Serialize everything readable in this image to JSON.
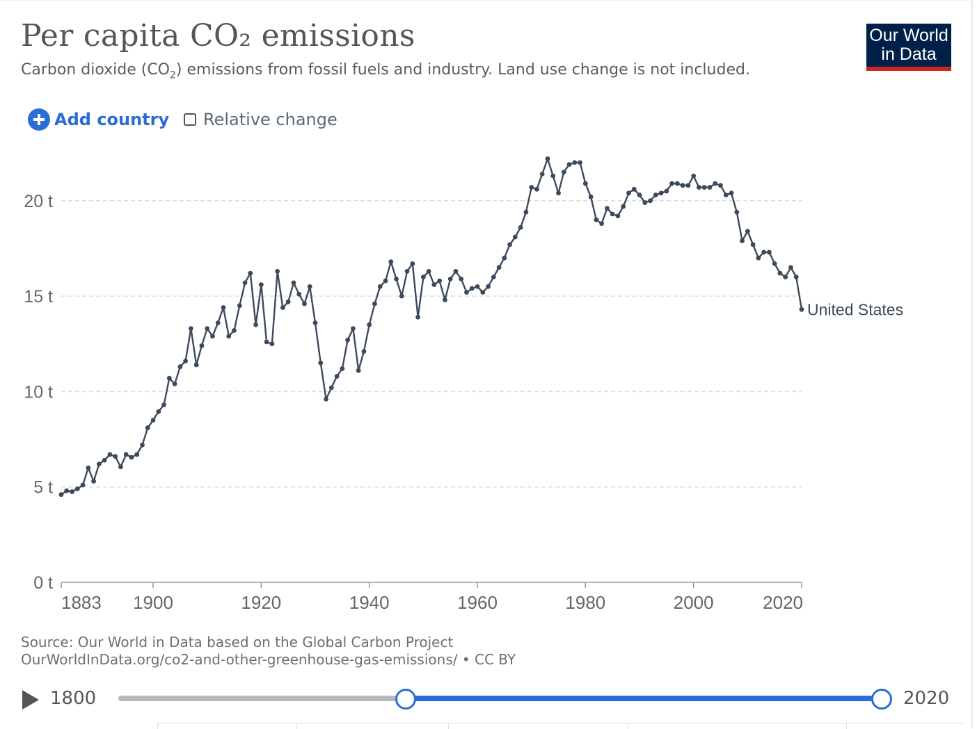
{
  "header": {
    "title": "Per capita CO₂ emissions",
    "subtitle_pre": "Carbon dioxide (CO",
    "subtitle_sub": "2",
    "subtitle_post": ") emissions from fossil fuels and industry. Land use change is not included.",
    "logo_line1": "Our World",
    "logo_line2": "in Data"
  },
  "controls": {
    "add_country": "Add country",
    "relative_change": "Relative change",
    "relative_checked": false
  },
  "footer": {
    "source": "Source: Our World in Data based on the Global Carbon Project",
    "url": "OurWorldInData.org/co2-and-other-greenhouse-gas-emissions/ • CC BY"
  },
  "timeline": {
    "start_label": "1800",
    "end_label": "2020",
    "range_min": 1800,
    "range_max": 2020,
    "selected_start": 1883,
    "selected_end": 2020
  },
  "colors": {
    "line": "#3c4a5c",
    "accent": "#2c6cd6",
    "logo_bg": "#002147",
    "logo_bar": "#ce261e"
  },
  "chart_data": {
    "type": "line",
    "title": "Per capita CO₂ emissions",
    "xlabel": "",
    "ylabel": "",
    "xlim": [
      1883,
      2020
    ],
    "ylim": [
      0,
      22
    ],
    "y_ticks": [
      0,
      5,
      10,
      15,
      20
    ],
    "y_tick_labels": [
      "0 t",
      "5 t",
      "10 t",
      "15 t",
      "20 t"
    ],
    "x_ticks": [
      1883,
      1900,
      1920,
      1940,
      1960,
      1980,
      2000,
      2020
    ],
    "x_tick_labels": [
      "1883",
      "1900",
      "1920",
      "1940",
      "1960",
      "1980",
      "2000",
      "2020"
    ],
    "grid": "horizontal dashed",
    "series": [
      {
        "name": "United States",
        "x": [
          1883,
          1884,
          1885,
          1886,
          1887,
          1888,
          1889,
          1890,
          1891,
          1892,
          1893,
          1894,
          1895,
          1896,
          1897,
          1898,
          1899,
          1900,
          1901,
          1902,
          1903,
          1904,
          1905,
          1906,
          1907,
          1908,
          1909,
          1910,
          1911,
          1912,
          1913,
          1914,
          1915,
          1916,
          1917,
          1918,
          1919,
          1920,
          1921,
          1922,
          1923,
          1924,
          1925,
          1926,
          1927,
          1928,
          1929,
          1930,
          1931,
          1932,
          1933,
          1934,
          1935,
          1936,
          1937,
          1938,
          1939,
          1940,
          1941,
          1942,
          1943,
          1944,
          1945,
          1946,
          1947,
          1948,
          1949,
          1950,
          1951,
          1952,
          1953,
          1954,
          1955,
          1956,
          1957,
          1958,
          1959,
          1960,
          1961,
          1962,
          1963,
          1964,
          1965,
          1966,
          1967,
          1968,
          1969,
          1970,
          1971,
          1972,
          1973,
          1974,
          1975,
          1976,
          1977,
          1978,
          1979,
          1980,
          1981,
          1982,
          1983,
          1984,
          1985,
          1986,
          1987,
          1988,
          1989,
          1990,
          1991,
          1992,
          1993,
          1994,
          1995,
          1996,
          1997,
          1998,
          1999,
          2000,
          2001,
          2002,
          2003,
          2004,
          2005,
          2006,
          2007,
          2008,
          2009,
          2010,
          2011,
          2012,
          2013,
          2014,
          2015,
          2016,
          2017,
          2018,
          2019,
          2020
        ],
        "values": [
          4.6,
          4.8,
          4.75,
          4.9,
          5.1,
          6.0,
          5.3,
          6.2,
          6.4,
          6.7,
          6.6,
          6.05,
          6.7,
          6.55,
          6.7,
          7.2,
          8.1,
          8.5,
          8.95,
          9.3,
          10.7,
          10.4,
          11.3,
          11.6,
          13.3,
          11.4,
          12.4,
          13.3,
          12.9,
          13.6,
          14.4,
          12.9,
          13.2,
          14.5,
          15.7,
          16.2,
          13.5,
          15.6,
          12.6,
          12.5,
          16.3,
          14.4,
          14.7,
          15.7,
          15.1,
          14.6,
          15.5,
          13.6,
          11.5,
          9.6,
          10.2,
          10.8,
          11.2,
          12.7,
          13.3,
          11.1,
          12.1,
          13.5,
          14.6,
          15.5,
          15.8,
          16.8,
          15.9,
          15.0,
          16.3,
          16.7,
          13.9,
          16.0,
          16.3,
          15.6,
          15.8,
          14.8,
          15.9,
          16.3,
          15.9,
          15.2,
          15.4,
          15.5,
          15.2,
          15.5,
          16.0,
          16.5,
          17.0,
          17.7,
          18.1,
          18.6,
          19.4,
          20.7,
          20.6,
          21.4,
          22.2,
          21.3,
          20.4,
          21.5,
          21.9,
          22.0,
          22.0,
          20.9,
          20.2,
          19.0,
          18.8,
          19.6,
          19.3,
          19.2,
          19.7,
          20.4,
          20.6,
          20.3,
          19.9,
          20.0,
          20.3,
          20.4,
          20.5,
          20.9,
          20.9,
          20.8,
          20.8,
          21.3,
          20.7,
          20.7,
          20.7,
          20.9,
          20.8,
          20.3,
          20.4,
          19.4,
          17.9,
          18.4,
          17.7,
          17.0,
          17.3,
          17.3,
          16.7,
          16.2,
          16.0,
          16.5,
          16.0,
          14.3
        ]
      }
    ]
  }
}
